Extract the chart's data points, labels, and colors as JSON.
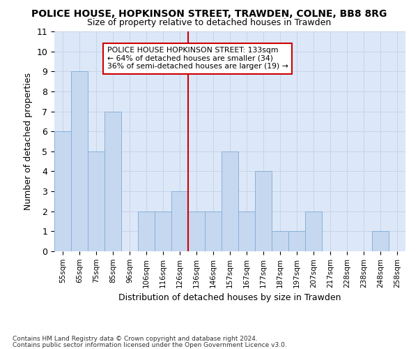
{
  "title": "POLICE HOUSE, HOPKINSON STREET, TRAWDEN, COLNE, BB8 8RG",
  "subtitle": "Size of property relative to detached houses in Trawden",
  "xlabel": "Distribution of detached houses by size in Trawden",
  "ylabel": "Number of detached properties",
  "bar_labels": [
    "55sqm",
    "65sqm",
    "75sqm",
    "85sqm",
    "96sqm",
    "106sqm",
    "116sqm",
    "126sqm",
    "136sqm",
    "146sqm",
    "157sqm",
    "167sqm",
    "177sqm",
    "187sqm",
    "197sqm",
    "207sqm",
    "217sqm",
    "228sqm",
    "238sqm",
    "248sqm",
    "258sqm"
  ],
  "bar_values": [
    6,
    9,
    5,
    7,
    0,
    2,
    2,
    3,
    2,
    2,
    5,
    2,
    4,
    1,
    1,
    2,
    0,
    0,
    0,
    1,
    0
  ],
  "bar_color": "#c5d8f0",
  "bar_edge_color": "#8ab0d8",
  "ref_line_index": 8,
  "annotation_title": "POLICE HOUSE HOPKINSON STREET: 133sqm",
  "annotation_line1": "← 64% of detached houses are smaller (34)",
  "annotation_line2": "36% of semi-detached houses are larger (19) →",
  "annotation_box_facecolor": "#ffffff",
  "annotation_box_edgecolor": "#cc0000",
  "ref_line_color": "#cc0000",
  "ylim": [
    0,
    11
  ],
  "yticks": [
    0,
    1,
    2,
    3,
    4,
    5,
    6,
    7,
    8,
    9,
    10,
    11
  ],
  "grid_color": "#c8d4e8",
  "plot_bg_color": "#dce8f8",
  "fig_bg_color": "#ffffff",
  "footnote1": "Contains HM Land Registry data © Crown copyright and database right 2024.",
  "footnote2": "Contains public sector information licensed under the Open Government Licence v3.0."
}
